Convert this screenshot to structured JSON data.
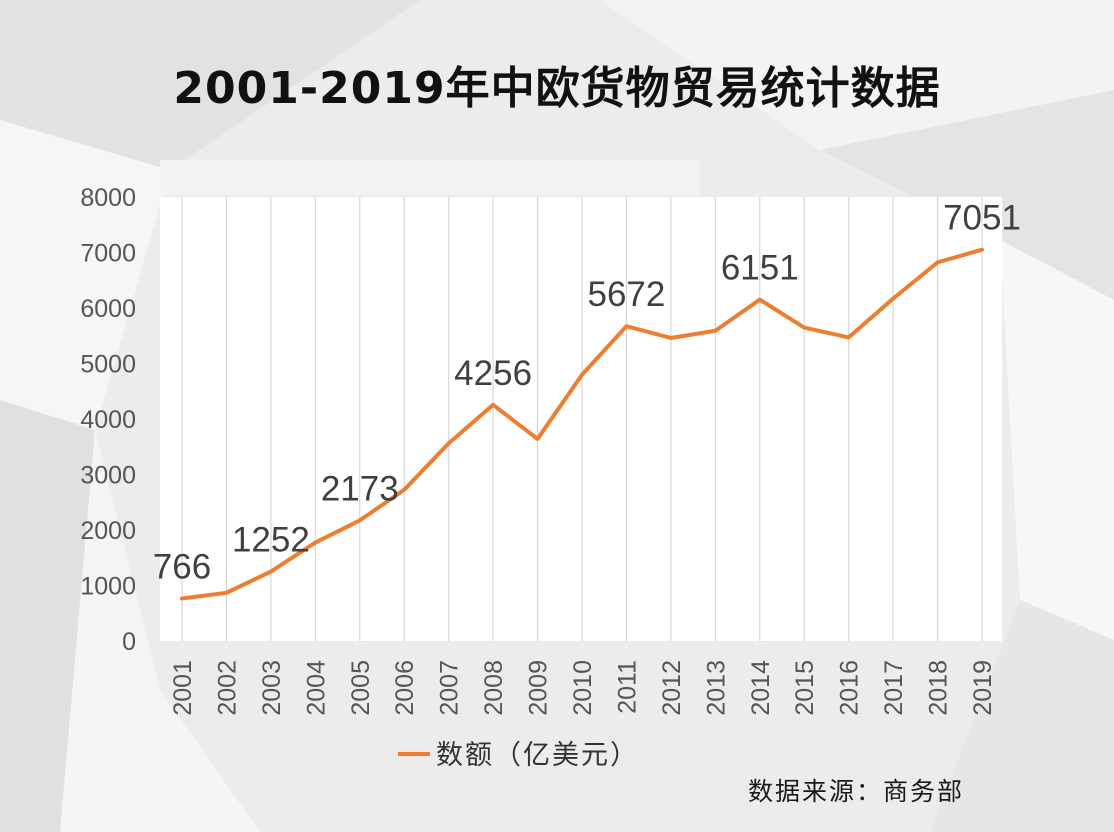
{
  "title": "2001-2019年中欧货物贸易统计数据",
  "source": "数据来源：商务部",
  "colors": {
    "line": "#ED7D31",
    "grid": "#d0d0d0",
    "axis_text": "#555555",
    "plot_bg": "#ffffff"
  },
  "chart_data": {
    "type": "line",
    "x": [
      "2001",
      "2002",
      "2003",
      "2004",
      "2005",
      "2006",
      "2007",
      "2008",
      "2009",
      "2010",
      "2011",
      "2012",
      "2013",
      "2014",
      "2015",
      "2016",
      "2017",
      "2018",
      "2019"
    ],
    "series": [
      {
        "name": "数额（亿美元）",
        "values": [
          766,
          868,
          1252,
          1773,
          2173,
          2725,
          3561,
          4256,
          3641,
          4797,
          5672,
          5460,
          5590,
          6151,
          5647,
          5470,
          6169,
          6822,
          7051
        ]
      }
    ],
    "data_labels": [
      {
        "index": 0,
        "text": "766"
      },
      {
        "index": 2,
        "text": "1252"
      },
      {
        "index": 4,
        "text": "2173"
      },
      {
        "index": 7,
        "text": "4256"
      },
      {
        "index": 10,
        "text": "5672"
      },
      {
        "index": 13,
        "text": "6151"
      },
      {
        "index": 18,
        "text": "7051"
      }
    ],
    "ylim": [
      0,
      8000
    ],
    "yticks": [
      "0",
      "1000",
      "2000",
      "3000",
      "4000",
      "5000",
      "6000",
      "7000",
      "8000"
    ],
    "grid": "vertical",
    "legend": "bottom"
  }
}
